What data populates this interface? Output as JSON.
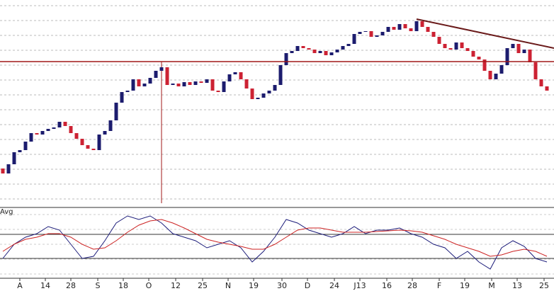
{
  "chart_data": [
    {
      "type": "candlestick",
      "open": [
        52,
        45,
        58,
        75,
        78,
        90,
        102,
        100,
        105,
        108,
        110,
        118,
        112,
        102,
        94,
        85,
        80,
        78,
        100,
        105,
        120,
        145,
        160,
        162,
        178,
        168,
        172,
        180,
        190,
        195,
        170,
        172,
        168,
        174,
        170,
        175,
        173,
        178,
        162,
        160,
        175,
        185,
        188,
        178,
        165,
        150,
        152,
        158,
        162,
        170,
        198,
        215,
        218,
        225,
        222,
        220,
        215,
        218,
        212,
        216,
        220,
        225,
        228,
        242,
        245,
        246,
        238,
        240,
        245,
        252,
        248,
        256,
        250,
        246,
        260,
        252,
        245,
        238,
        228,
        222,
        220,
        230,
        222,
        218,
        210,
        206,
        190,
        178,
        186,
        198,
        222,
        228,
        215,
        220,
        202,
        178,
        168
      ],
      "close": [
        45,
        58,
        75,
        78,
        90,
        102,
        100,
        105,
        108,
        110,
        118,
        112,
        102,
        94,
        85,
        80,
        78,
        100,
        105,
        120,
        145,
        160,
        162,
        178,
        168,
        172,
        180,
        190,
        195,
        170,
        172,
        168,
        174,
        170,
        175,
        173,
        178,
        162,
        160,
        175,
        185,
        188,
        178,
        165,
        150,
        152,
        158,
        162,
        170,
        198,
        215,
        218,
        225,
        222,
        220,
        215,
        218,
        212,
        216,
        220,
        225,
        228,
        242,
        245,
        246,
        238,
        240,
        245,
        252,
        248,
        256,
        250,
        246,
        260,
        252,
        245,
        238,
        228,
        222,
        220,
        230,
        222,
        218,
        210,
        206,
        190,
        178,
        186,
        198,
        222,
        228,
        215,
        220,
        202,
        178,
        168,
        162
      ],
      "up_color": "#1c1c6e",
      "down_color": "#cc2233",
      "xlim": [
        -0.5,
        97.25
      ],
      "ylim": [
        0,
        290
      ],
      "hline": 203,
      "vline": 28,
      "trendline": {
        "x": [
          73,
          97.25
        ],
        "y": [
          263,
          222
        ]
      },
      "xticks": [
        {
          "value": 3,
          "label": "A"
        },
        {
          "value": 7.5,
          "label": "14"
        },
        {
          "value": 12,
          "label": "28"
        },
        {
          "value": 16.75,
          "label": "S"
        },
        {
          "value": 21.25,
          "label": "18"
        },
        {
          "value": 25.75,
          "label": "O"
        },
        {
          "value": 30.5,
          "label": "12"
        },
        {
          "value": 35.25,
          "label": "25"
        },
        {
          "value": 39.75,
          "label": "N"
        },
        {
          "value": 44.25,
          "label": "19"
        },
        {
          "value": 49.25,
          "label": "30"
        },
        {
          "value": 53.75,
          "label": "D"
        },
        {
          "value": 58.5,
          "label": "24"
        },
        {
          "value": 63,
          "label": "J13"
        },
        {
          "value": 67.75,
          "label": "16"
        },
        {
          "value": 72.25,
          "label": "28"
        },
        {
          "value": 77,
          "label": "F"
        },
        {
          "value": 81.5,
          "label": "19"
        },
        {
          "value": 86.25,
          "label": "M"
        },
        {
          "value": 90.75,
          "label": "13"
        },
        {
          "value": 95.5,
          "label": "25"
        }
      ]
    },
    {
      "type": "line",
      "x": [
        0,
        2,
        4,
        6,
        8,
        10,
        12,
        14,
        16,
        18,
        20,
        22,
        24,
        26,
        28,
        30,
        32,
        34,
        36,
        38,
        40,
        42,
        44,
        46,
        48,
        50,
        52,
        54,
        56,
        58,
        60,
        62,
        64,
        66,
        68,
        70,
        72,
        74,
        76,
        78,
        80,
        82,
        84,
        86,
        88,
        90,
        92,
        94,
        96
      ],
      "xlim": [
        -0.5,
        97.25
      ],
      "ylim": [
        0,
        100
      ],
      "levels": [
        28,
        62
      ],
      "series": [
        {
          "color": "#1c1c7a",
          "values": [
            28,
            48,
            58,
            63,
            73,
            68,
            48,
            28,
            31,
            53,
            78,
            88,
            83,
            88,
            78,
            63,
            58,
            53,
            43,
            48,
            53,
            43,
            23,
            38,
            58,
            83,
            78,
            68,
            63,
            58,
            63,
            73,
            63,
            68,
            68,
            71,
            63,
            58,
            48,
            43,
            28,
            38,
            23,
            13,
            43,
            53,
            45,
            28,
            23
          ]
        },
        {
          "name": "Avg",
          "color": "#cc2222",
          "values": [
            38,
            48,
            55,
            58,
            63,
            63,
            58,
            48,
            41,
            43,
            53,
            65,
            75,
            81,
            83,
            78,
            71,
            63,
            55,
            51,
            48,
            45,
            41,
            41,
            48,
            58,
            68,
            71,
            71,
            68,
            65,
            65,
            65,
            66,
            67,
            68,
            67,
            65,
            60,
            55,
            48,
            43,
            38,
            31,
            33,
            38,
            41,
            38,
            31
          ]
        }
      ]
    }
  ]
}
